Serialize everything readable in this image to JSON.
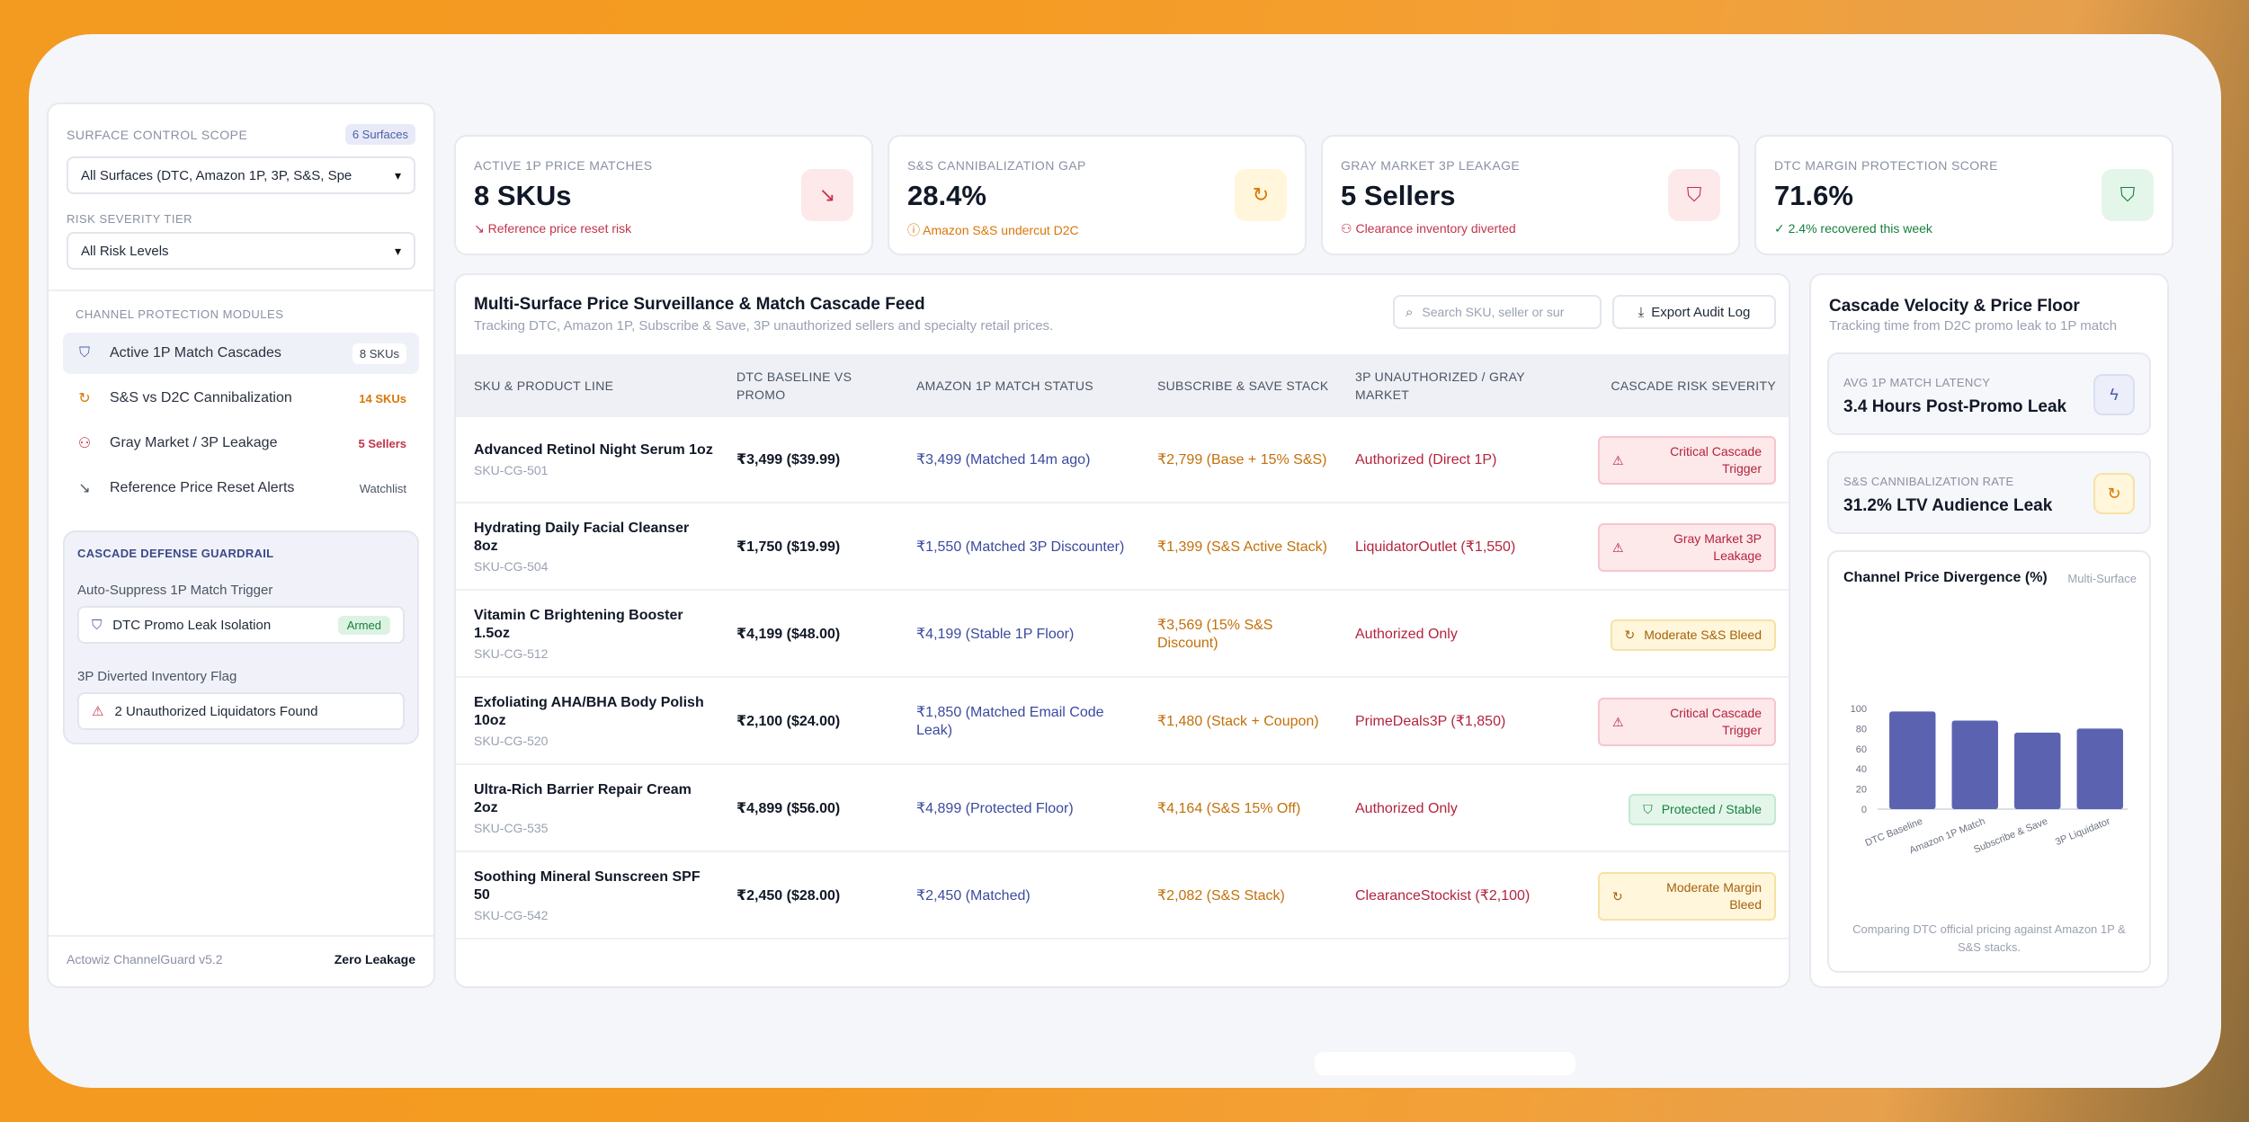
{
  "sidebar": {
    "scope_label": "SURFACE CONTROL SCOPE",
    "scope_badge": "6 Surfaces",
    "scope_select": "All Surfaces (DTC, Amazon 1P, 3P, S&S, Spe",
    "risk_label": "RISK SEVERITY TIER",
    "risk_select": "All Risk Levels",
    "modules_label": "CHANNEL PROTECTION MODULES",
    "modules": [
      {
        "label": "Active 1P Match Cascades",
        "count": "8 SKUs",
        "icon": "shield-icon"
      },
      {
        "label": "S&S vs D2C Cannibalization",
        "count": "14 SKUs",
        "icon": "refresh-icon"
      },
      {
        "label": "Gray Market / 3P Leakage",
        "count": "5 Sellers",
        "icon": "user-x-icon"
      },
      {
        "label": "Reference Price Reset Alerts",
        "count": "Watchlist",
        "icon": "trend-down-icon"
      }
    ],
    "guardrail": {
      "title": "CASCADE DEFENSE GUARDRAIL",
      "auto_label": "Auto-Suppress 1P Match Trigger",
      "auto_value": "DTC Promo Leak Isolation",
      "auto_status": "Armed",
      "flag_label": "3P Diverted Inventory Flag",
      "flag_value": "2 Unauthorized Liquidators Found"
    },
    "footer_version": "Actowiz ChannelGuard v5.2",
    "footer_status": "Zero Leakage"
  },
  "kpis": [
    {
      "label": "ACTIVE 1P PRICE MATCHES",
      "value": "8 SKUs",
      "sub": "Reference price reset risk",
      "sub_color": "#c2344a",
      "icon_bg": "#fde8ea",
      "icon_color": "#c2344a",
      "icon": "trend-down-icon"
    },
    {
      "label": "S&S CANNIBALIZATION GAP",
      "value": "28.4%",
      "sub": "Amazon S&S undercut D2C",
      "sub_color": "#d97706",
      "icon_bg": "#fff6dc",
      "icon_color": "#d97706",
      "icon": "refresh-icon"
    },
    {
      "label": "GRAY MARKET 3P LEAKAGE",
      "value": "5 Sellers",
      "sub": "Clearance inventory diverted",
      "sub_color": "#c2344a",
      "icon_bg": "#fde8ea",
      "icon_color": "#c2344a",
      "icon": "shield-alert-icon"
    },
    {
      "label": "DTC MARGIN PROTECTION SCORE",
      "value": "71.6%",
      "sub": "2.4% recovered this week",
      "sub_color": "#17803d",
      "icon_bg": "#e4f6ea",
      "icon_color": "#17803d",
      "icon": "shield-check-icon"
    }
  ],
  "feed": {
    "title": "Multi-Surface Price Surveillance & Match Cascade Feed",
    "subtitle": "Tracking DTC, Amazon 1P, Subscribe & Save, 3P unauthorized sellers and specialty retail prices.",
    "search_placeholder": "Search SKU, seller or sur",
    "export_label": "Export Audit Log",
    "columns": [
      "SKU & PRODUCT LINE",
      "DTC BASELINE VS PROMO",
      "AMAZON 1P MATCH STATUS",
      "SUBSCRIBE & SAVE STACK",
      "3P UNAUTHORIZED / GRAY MARKET",
      "CASCADE RISK SEVERITY"
    ],
    "rows": [
      {
        "name": "Advanced Retinol Night Serum 1oz",
        "sku": "SKU-CG-501",
        "dtc": "₹3,499 ($39.99)",
        "amz": "₹3,499 (Matched 14m ago)",
        "ss": "₹2,799 (Base + 15% S&S)",
        "tp": "Authorized (Direct 1P)",
        "risk": "Critical Cascade Trigger",
        "risk_type": "red",
        "risk_icon": "⚠"
      },
      {
        "name": "Hydrating Daily Facial Cleanser 8oz",
        "sku": "SKU-CG-504",
        "dtc": "₹1,750 ($19.99)",
        "amz": "₹1,550 (Matched 3P Discounter)",
        "ss": "₹1,399 (S&S Active Stack)",
        "tp": "LiquidatorOutlet (₹1,550)",
        "risk": "Gray Market 3P Leakage",
        "risk_type": "red",
        "risk_icon": "⚠"
      },
      {
        "name": "Vitamin C Brightening Booster 1.5oz",
        "sku": "SKU-CG-512",
        "dtc": "₹4,199 ($48.00)",
        "amz": "₹4,199 (Stable 1P Floor)",
        "ss": "₹3,569 (15% S&S Discount)",
        "tp": "Authorized Only",
        "risk": "Moderate S&S Bleed",
        "risk_type": "orange",
        "risk_icon": "↻"
      },
      {
        "name": "Exfoliating AHA/BHA Body Polish 10oz",
        "sku": "SKU-CG-520",
        "dtc": "₹2,100 ($24.00)",
        "amz": "₹1,850 (Matched Email Code Leak)",
        "ss": "₹1,480 (Stack + Coupon)",
        "tp": "PrimeDeals3P (₹1,850)",
        "risk": "Critical Cascade Trigger",
        "risk_type": "red",
        "risk_icon": "⚠"
      },
      {
        "name": "Ultra-Rich Barrier Repair Cream 2oz",
        "sku": "SKU-CG-535",
        "dtc": "₹4,899 ($56.00)",
        "amz": "₹4,899 (Protected Floor)",
        "ss": "₹4,164 (S&S 15% Off)",
        "tp": "Authorized Only",
        "risk": "Protected / Stable",
        "risk_type": "green",
        "risk_icon": "⛉"
      },
      {
        "name": "Soothing Mineral Sunscreen SPF 50",
        "sku": "SKU-CG-542",
        "dtc": "₹2,450 ($28.00)",
        "amz": "₹2,450 (Matched)",
        "ss": "₹2,082 (S&S Stack)",
        "tp": "ClearanceStockist (₹2,100)",
        "risk": "Moderate Margin Bleed",
        "risk_type": "orange-wide",
        "risk_icon": "↻"
      }
    ]
  },
  "velocity": {
    "title": "Cascade Velocity & Price Floor",
    "subtitle": "Tracking time from D2C promo leak to 1P match",
    "stats": [
      {
        "label": "AVG 1P MATCH LATENCY",
        "value": "3.4 Hours Post-Promo Leak",
        "icon": "bolt-icon",
        "icon_bg": "#eceff9",
        "icon_color": "#4a5ea8"
      },
      {
        "label": "S&S CANNIBALIZATION RATE",
        "value": "31.2% LTV Audience Leak",
        "icon": "refresh-icon",
        "icon_bg": "#fff6dc",
        "icon_color": "#d97706"
      }
    ],
    "chart_title": "Channel Price Divergence (%)",
    "chart_tag": "Multi-Surface",
    "chart_foot": "Comparing DTC official pricing against Amazon 1P & S&S stacks."
  },
  "chart_data": {
    "type": "bar",
    "title": "Channel Price Divergence (%)",
    "categories": [
      "DTC Baseline",
      "Amazon 1P Match",
      "Subscribe & Save",
      "3P Liquidator"
    ],
    "values": [
      97,
      88,
      76,
      80
    ],
    "ylim": [
      0,
      100
    ],
    "yticks": [
      0,
      20,
      40,
      60,
      80,
      100
    ],
    "color": "#5b63b0",
    "grid": false
  }
}
